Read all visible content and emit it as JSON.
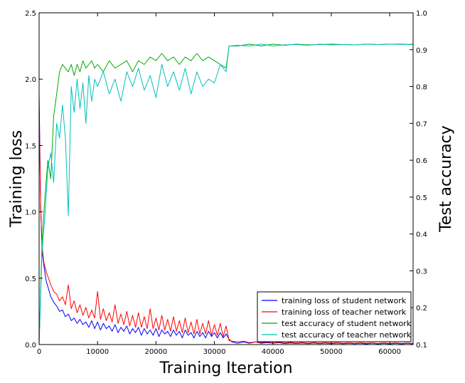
{
  "chart_data": {
    "type": "line",
    "xlabel": "Training Iteration",
    "ylabel_left": "Training loss",
    "ylabel_right": "Test accuracy",
    "xlim": [
      0,
      64000
    ],
    "ylim_left": [
      0,
      2.5
    ],
    "ylim_right": [
      0.1,
      1.0
    ],
    "x_ticks": [
      0,
      10000,
      20000,
      30000,
      40000,
      50000,
      60000
    ],
    "x_tick_labels": [
      "0",
      "10000",
      "20000",
      "30000",
      "40000",
      "50000",
      "60000"
    ],
    "y_left_ticks": [
      0,
      0.5,
      1.0,
      1.5,
      2.0,
      2.5
    ],
    "y_left_tick_labels": [
      "0.0",
      "0.5",
      "1.0",
      "1.5",
      "2.0",
      "2.5"
    ],
    "y_right_ticks": [
      0.1,
      0.2,
      0.3,
      0.4,
      0.5,
      0.6,
      0.7,
      0.8,
      0.9,
      1.0
    ],
    "y_right_tick_labels": [
      "0.1",
      "0.2",
      "0.3",
      "0.4",
      "0.5",
      "0.6",
      "0.7",
      "0.8",
      "0.9",
      "1.0"
    ],
    "legend_position": "bottom-right",
    "grid": false,
    "series": [
      {
        "name": "training loss of student network",
        "axis": "left",
        "color": "#0000ff",
        "x": [
          0,
          250,
          500,
          800,
          1200,
          1600,
          2000,
          2500,
          3000,
          3500,
          4000,
          4500,
          5000,
          5500,
          6000,
          6500,
          7000,
          7500,
          8000,
          8500,
          9000,
          9500,
          10000,
          10500,
          11000,
          11500,
          12000,
          12500,
          13000,
          13500,
          14000,
          14500,
          15000,
          15500,
          16000,
          16500,
          17000,
          17500,
          18000,
          18500,
          19000,
          19500,
          20000,
          20500,
          21000,
          21500,
          22000,
          22500,
          23000,
          23500,
          24000,
          24500,
          25000,
          25500,
          26000,
          26500,
          27000,
          27500,
          28000,
          28500,
          29000,
          29500,
          30000,
          30500,
          31000,
          31500,
          32000,
          32500,
          33000,
          34000,
          35000,
          36000,
          37000,
          38000,
          39000,
          40000,
          41000,
          42000,
          43000,
          44000,
          45000,
          46000,
          47000,
          48000,
          49000,
          50000,
          51000,
          52000,
          53000,
          54000,
          55000,
          56000,
          57000,
          58000,
          59000,
          60000,
          61000,
          62000,
          63000,
          64000
        ],
        "values": [
          1.9,
          1.05,
          0.72,
          0.6,
          0.48,
          0.42,
          0.36,
          0.32,
          0.29,
          0.25,
          0.26,
          0.21,
          0.23,
          0.18,
          0.2,
          0.16,
          0.19,
          0.15,
          0.17,
          0.13,
          0.18,
          0.12,
          0.17,
          0.11,
          0.16,
          0.12,
          0.14,
          0.1,
          0.15,
          0.09,
          0.13,
          0.1,
          0.14,
          0.08,
          0.12,
          0.09,
          0.13,
          0.07,
          0.12,
          0.08,
          0.11,
          0.07,
          0.12,
          0.06,
          0.11,
          0.08,
          0.1,
          0.06,
          0.11,
          0.07,
          0.1,
          0.05,
          0.11,
          0.07,
          0.09,
          0.05,
          0.1,
          0.06,
          0.09,
          0.05,
          0.1,
          0.06,
          0.09,
          0.05,
          0.09,
          0.05,
          0.08,
          0.04,
          0.02,
          0.01,
          0.02,
          0.01,
          0.02,
          0.01,
          0.015,
          0.01,
          0.015,
          0.008,
          0.012,
          0.008,
          0.012,
          0.007,
          0.012,
          0.007,
          0.011,
          0.006,
          0.011,
          0.006,
          0.01,
          0.006,
          0.01,
          0.005,
          0.01,
          0.005,
          0.009,
          0.005,
          0.009,
          0.005,
          0.009,
          0.005
        ]
      },
      {
        "name": "training loss of teacher network",
        "axis": "left",
        "color": "#ff0000",
        "x": [
          0,
          250,
          500,
          800,
          1200,
          1600,
          2000,
          2500,
          3000,
          3500,
          4000,
          4500,
          5000,
          5500,
          6000,
          6500,
          7000,
          7500,
          8000,
          8500,
          9000,
          9500,
          10000,
          10500,
          11000,
          11500,
          12000,
          12500,
          13000,
          13500,
          14000,
          14500,
          15000,
          15500,
          16000,
          16500,
          17000,
          17500,
          18000,
          18500,
          19000,
          19500,
          20000,
          20500,
          21000,
          21500,
          22000,
          22500,
          23000,
          23500,
          24000,
          24500,
          25000,
          25500,
          26000,
          26500,
          27000,
          27500,
          28000,
          28500,
          29000,
          29500,
          30000,
          30500,
          31000,
          31500,
          32000,
          32500,
          33000,
          34000,
          35000,
          36000,
          37000,
          38000,
          39000,
          40000,
          41000,
          42000,
          43000,
          44000,
          45000,
          46000,
          47000,
          48000,
          49000,
          50000,
          51000,
          52000,
          53000,
          54000,
          55000,
          56000,
          57000,
          58000,
          59000,
          60000,
          61000,
          62000,
          63000,
          64000
        ],
        "values": [
          1.8,
          1.05,
          0.75,
          0.62,
          0.55,
          0.5,
          0.45,
          0.4,
          0.38,
          0.33,
          0.36,
          0.3,
          0.45,
          0.27,
          0.33,
          0.24,
          0.3,
          0.22,
          0.28,
          0.2,
          0.26,
          0.2,
          0.4,
          0.19,
          0.27,
          0.18,
          0.24,
          0.17,
          0.3,
          0.16,
          0.23,
          0.15,
          0.25,
          0.14,
          0.22,
          0.13,
          0.24,
          0.13,
          0.21,
          0.12,
          0.27,
          0.12,
          0.2,
          0.11,
          0.22,
          0.11,
          0.19,
          0.1,
          0.21,
          0.1,
          0.18,
          0.09,
          0.2,
          0.09,
          0.17,
          0.08,
          0.19,
          0.08,
          0.16,
          0.08,
          0.18,
          0.07,
          0.15,
          0.07,
          0.16,
          0.06,
          0.14,
          0.03,
          0.025,
          0.02,
          0.025,
          0.015,
          0.02,
          0.015,
          0.02,
          0.012,
          0.018,
          0.012,
          0.016,
          0.011,
          0.015,
          0.01,
          0.015,
          0.01,
          0.014,
          0.01,
          0.014,
          0.009,
          0.013,
          0.009,
          0.013,
          0.009,
          0.012,
          0.008,
          0.012,
          0.008,
          0.012,
          0.008,
          0.011,
          0.008
        ]
      },
      {
        "name": "test accuracy of student network",
        "axis": "right",
        "color": "#00aa00",
        "x": [
          0,
          500,
          1000,
          1500,
          2000,
          2500,
          3000,
          3500,
          4000,
          4500,
          5000,
          5500,
          6000,
          6500,
          7000,
          7500,
          8000,
          8500,
          9000,
          9500,
          10000,
          11000,
          12000,
          13000,
          14000,
          15000,
          16000,
          17000,
          18000,
          19000,
          20000,
          21000,
          22000,
          23000,
          24000,
          25000,
          26000,
          27000,
          28000,
          29000,
          30000,
          31000,
          32000,
          32500,
          34000,
          36000,
          38000,
          40000,
          42000,
          44000,
          46000,
          48000,
          50000,
          52000,
          54000,
          56000,
          58000,
          60000,
          62000,
          64000
        ],
        "values": [
          0.1,
          0.38,
          0.5,
          0.6,
          0.55,
          0.72,
          0.78,
          0.84,
          0.86,
          0.85,
          0.84,
          0.86,
          0.83,
          0.86,
          0.84,
          0.87,
          0.85,
          0.86,
          0.87,
          0.85,
          0.86,
          0.84,
          0.87,
          0.85,
          0.86,
          0.87,
          0.84,
          0.87,
          0.86,
          0.88,
          0.87,
          0.89,
          0.87,
          0.88,
          0.86,
          0.88,
          0.87,
          0.89,
          0.87,
          0.88,
          0.87,
          0.86,
          0.85,
          0.91,
          0.91,
          0.915,
          0.91,
          0.915,
          0.912,
          0.915,
          0.913,
          0.914,
          0.915,
          0.914,
          0.913,
          0.915,
          0.914,
          0.915,
          0.915,
          0.914
        ]
      },
      {
        "name": "test accuracy of teacher network",
        "axis": "right",
        "color": "#00bfbf",
        "x": [
          0,
          500,
          1000,
          1500,
          2000,
          2500,
          3000,
          3500,
          4000,
          4500,
          5000,
          5500,
          6000,
          6500,
          7000,
          7500,
          8000,
          8500,
          9000,
          9500,
          10000,
          11000,
          12000,
          13000,
          14000,
          15000,
          16000,
          17000,
          18000,
          19000,
          20000,
          21000,
          22000,
          23000,
          24000,
          25000,
          26000,
          27000,
          28000,
          29000,
          30000,
          31000,
          32000,
          32500,
          34000,
          36000,
          38000,
          40000,
          42000,
          44000,
          46000,
          48000,
          50000,
          52000,
          54000,
          56000,
          58000,
          60000,
          62000,
          64000
        ],
        "values": [
          0.1,
          0.35,
          0.45,
          0.58,
          0.62,
          0.54,
          0.7,
          0.66,
          0.75,
          0.66,
          0.45,
          0.8,
          0.73,
          0.82,
          0.74,
          0.81,
          0.7,
          0.83,
          0.76,
          0.82,
          0.8,
          0.84,
          0.78,
          0.82,
          0.76,
          0.84,
          0.8,
          0.85,
          0.79,
          0.83,
          0.77,
          0.86,
          0.8,
          0.84,
          0.79,
          0.85,
          0.78,
          0.84,
          0.8,
          0.82,
          0.81,
          0.86,
          0.84,
          0.91,
          0.912,
          0.91,
          0.915,
          0.91,
          0.913,
          0.914,
          0.912,
          0.915,
          0.913,
          0.914,
          0.913,
          0.915,
          0.914,
          0.915,
          0.914,
          0.915
        ]
      }
    ]
  }
}
